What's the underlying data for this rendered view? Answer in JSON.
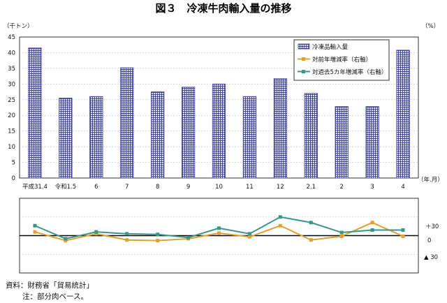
{
  "chart_data": {
    "type": "bar",
    "title": "図３　冷凍牛肉輸入量の推移",
    "categories": [
      "平成31.4",
      "令和1.5",
      "6",
      "7",
      "8",
      "9",
      "10",
      "11",
      "12",
      "2.1",
      "2",
      "3",
      "4"
    ],
    "series": [
      {
        "name": "冷凍品輸入量",
        "type": "bar",
        "axis": "left",
        "values": [
          41.5,
          25.5,
          26,
          35.2,
          27.5,
          29,
          30,
          26,
          31.7,
          27,
          22.8,
          22.8,
          40.8
        ]
      },
      {
        "name": "対前年増減率（右軸）",
        "type": "line",
        "axis": "right",
        "color": "#e0a030",
        "values": [
          6,
          -8,
          3,
          -7,
          -8,
          -5,
          4,
          -2,
          16,
          -7,
          -1,
          21,
          -1
        ]
      },
      {
        "name": "対過去5カ年増減率（右軸）",
        "type": "line",
        "axis": "right",
        "color": "#3a9488",
        "values": [
          16,
          -5,
          6,
          3,
          2,
          -3,
          12,
          3,
          30,
          21,
          5,
          9,
          9
        ]
      }
    ],
    "bar_axis": {
      "unit": "（千トン）",
      "ylim": [
        0,
        45
      ],
      "ticks": [
        "0",
        "5",
        "10",
        "15",
        "20",
        "25",
        "30",
        "35",
        "40",
        "45"
      ]
    },
    "rate_axis": {
      "unit": "（%）",
      "ylim": [
        -60,
        60
      ],
      "tick_labels": [
        "＋30",
        "0",
        "▲ 30"
      ],
      "tick_values": [
        30,
        0,
        -30
      ]
    },
    "x_unit": "（年.月）",
    "legend": "top-right",
    "grid": "dashed horizontal",
    "colors": {
      "bar_fill": "#3a3e8c",
      "bar_grid": "#dde0f4",
      "grid": "#c4c4c4",
      "zero_line": "#000000"
    },
    "source": "資料：財務省「貿易統計」",
    "note": "注：部分肉ベース。"
  }
}
